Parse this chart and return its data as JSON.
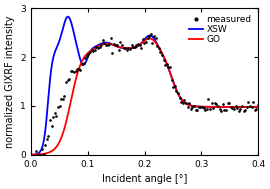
{
  "title": "",
  "xlabel": "Incident angle [°]",
  "ylabel": "normalized GIXRF intensity",
  "xlim": [
    0,
    0.4
  ],
  "ylim": [
    0,
    3
  ],
  "yticks": [
    0,
    1,
    2,
    3
  ],
  "xticks": [
    0,
    0.1,
    0.2,
    0.3,
    0.4
  ],
  "legend_labels": [
    "measured",
    "XSW",
    "GO"
  ],
  "line_colors": {
    "xsw": "blue",
    "go": "red"
  },
  "meas_color": "black",
  "background_color": "white",
  "figsize": [
    2.7,
    1.89
  ],
  "dpi": 100
}
